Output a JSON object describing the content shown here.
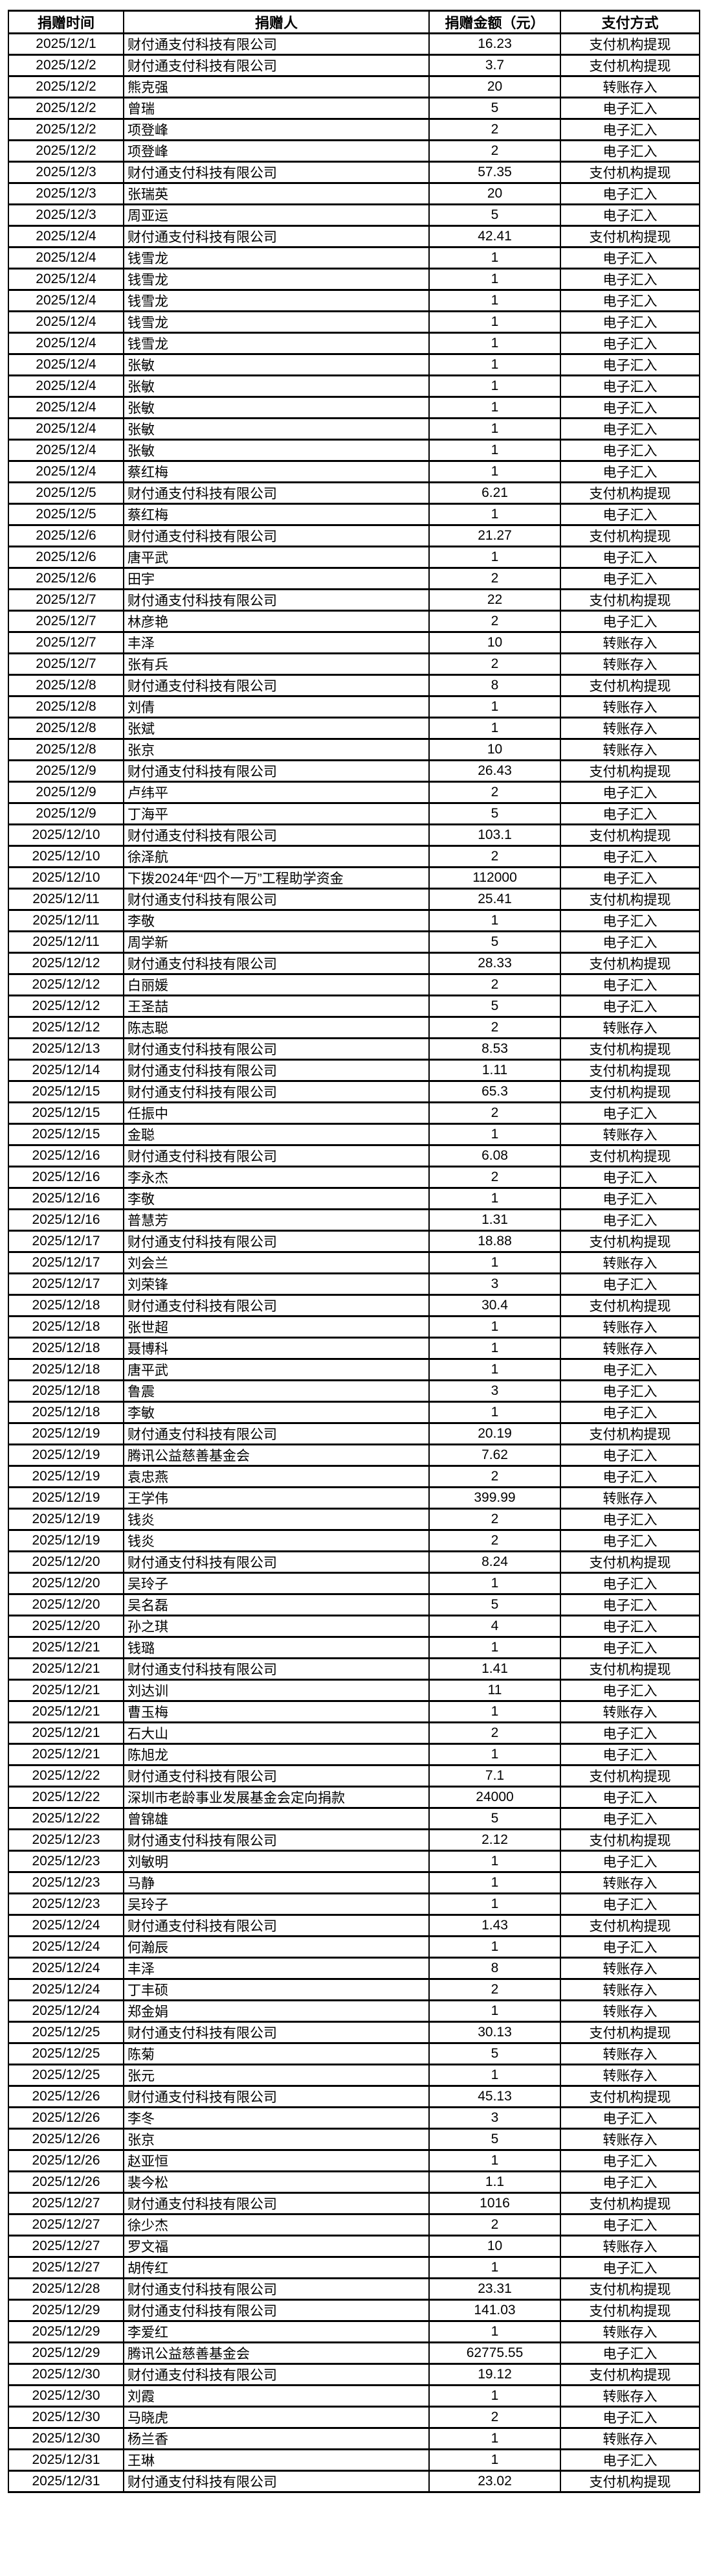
{
  "table": {
    "headers": [
      "捐赠时间",
      "捐赠人",
      "捐赠金额（元）",
      "支付方式"
    ],
    "rows": [
      [
        "2025/12/1",
        "财付通支付科技有限公司",
        "16.23",
        "支付机构提现"
      ],
      [
        "2025/12/2",
        "财付通支付科技有限公司",
        "3.7",
        "支付机构提现"
      ],
      [
        "2025/12/2",
        "熊克强",
        "20",
        "转账存入"
      ],
      [
        "2025/12/2",
        "曾瑞",
        "5",
        "电子汇入"
      ],
      [
        "2025/12/2",
        "项登峰",
        "2",
        "电子汇入"
      ],
      [
        "2025/12/2",
        "项登峰",
        "2",
        "电子汇入"
      ],
      [
        "2025/12/3",
        "财付通支付科技有限公司",
        "57.35",
        "支付机构提现"
      ],
      [
        "2025/12/3",
        "张瑞英",
        "20",
        "电子汇入"
      ],
      [
        "2025/12/3",
        "周亚运",
        "5",
        "电子汇入"
      ],
      [
        "2025/12/4",
        "财付通支付科技有限公司",
        "42.41",
        "支付机构提现"
      ],
      [
        "2025/12/4",
        "钱雪龙",
        "1",
        "电子汇入"
      ],
      [
        "2025/12/4",
        "钱雪龙",
        "1",
        "电子汇入"
      ],
      [
        "2025/12/4",
        "钱雪龙",
        "1",
        "电子汇入"
      ],
      [
        "2025/12/4",
        "钱雪龙",
        "1",
        "电子汇入"
      ],
      [
        "2025/12/4",
        "钱雪龙",
        "1",
        "电子汇入"
      ],
      [
        "2025/12/4",
        "张敏",
        "1",
        "电子汇入"
      ],
      [
        "2025/12/4",
        "张敏",
        "1",
        "电子汇入"
      ],
      [
        "2025/12/4",
        "张敏",
        "1",
        "电子汇入"
      ],
      [
        "2025/12/4",
        "张敏",
        "1",
        "电子汇入"
      ],
      [
        "2025/12/4",
        "张敏",
        "1",
        "电子汇入"
      ],
      [
        "2025/12/4",
        "蔡红梅",
        "1",
        "电子汇入"
      ],
      [
        "2025/12/5",
        "财付通支付科技有限公司",
        "6.21",
        "支付机构提现"
      ],
      [
        "2025/12/5",
        "蔡红梅",
        "1",
        "电子汇入"
      ],
      [
        "2025/12/6",
        "财付通支付科技有限公司",
        "21.27",
        "支付机构提现"
      ],
      [
        "2025/12/6",
        "唐平武",
        "1",
        "电子汇入"
      ],
      [
        "2025/12/6",
        "田宇",
        "2",
        "电子汇入"
      ],
      [
        "2025/12/7",
        "财付通支付科技有限公司",
        "22",
        "支付机构提现"
      ],
      [
        "2025/12/7",
        "林彦艳",
        "2",
        "电子汇入"
      ],
      [
        "2025/12/7",
        "丰泽",
        "10",
        "转账存入"
      ],
      [
        "2025/12/7",
        "张有兵",
        "2",
        "转账存入"
      ],
      [
        "2025/12/8",
        "财付通支付科技有限公司",
        "8",
        "支付机构提现"
      ],
      [
        "2025/12/8",
        "刘倩",
        "1",
        "转账存入"
      ],
      [
        "2025/12/8",
        "张斌",
        "1",
        "转账存入"
      ],
      [
        "2025/12/8",
        "张京",
        "10",
        "转账存入"
      ],
      [
        "2025/12/9",
        "财付通支付科技有限公司",
        "26.43",
        "支付机构提现"
      ],
      [
        "2025/12/9",
        "卢纬平",
        "2",
        "电子汇入"
      ],
      [
        "2025/12/9",
        "丁海平",
        "5",
        "电子汇入"
      ],
      [
        "2025/12/10",
        "财付通支付科技有限公司",
        "103.1",
        "支付机构提现"
      ],
      [
        "2025/12/10",
        "徐泽航",
        "2",
        "电子汇入"
      ],
      [
        "2025/12/10",
        "下拨2024年“四个一万”工程助学资金",
        "112000",
        "电子汇入"
      ],
      [
        "2025/12/11",
        "财付通支付科技有限公司",
        "25.41",
        "支付机构提现"
      ],
      [
        "2025/12/11",
        "李敬",
        "1",
        "电子汇入"
      ],
      [
        "2025/12/11",
        "周学新",
        "5",
        "电子汇入"
      ],
      [
        "2025/12/12",
        "财付通支付科技有限公司",
        "28.33",
        "支付机构提现"
      ],
      [
        "2025/12/12",
        "白丽媛",
        "2",
        "电子汇入"
      ],
      [
        "2025/12/12",
        "王圣喆",
        "5",
        "电子汇入"
      ],
      [
        "2025/12/12",
        "陈志聪",
        "2",
        "转账存入"
      ],
      [
        "2025/12/13",
        "财付通支付科技有限公司",
        "8.53",
        "支付机构提现"
      ],
      [
        "2025/12/14",
        "财付通支付科技有限公司",
        "1.11",
        "支付机构提现"
      ],
      [
        "2025/12/15",
        "财付通支付科技有限公司",
        "65.3",
        "支付机构提现"
      ],
      [
        "2025/12/15",
        "任振中",
        "2",
        "电子汇入"
      ],
      [
        "2025/12/15",
        "金聪",
        "1",
        "转账存入"
      ],
      [
        "2025/12/16",
        "财付通支付科技有限公司",
        "6.08",
        "支付机构提现"
      ],
      [
        "2025/12/16",
        "李永杰",
        "2",
        "电子汇入"
      ],
      [
        "2025/12/16",
        "李敬",
        "1",
        "电子汇入"
      ],
      [
        "2025/12/16",
        "普慧芳",
        "1.31",
        "电子汇入"
      ],
      [
        "2025/12/17",
        "财付通支付科技有限公司",
        "18.88",
        "支付机构提现"
      ],
      [
        "2025/12/17",
        "刘会兰",
        "1",
        "转账存入"
      ],
      [
        "2025/12/17",
        "刘荣锋",
        "3",
        "电子汇入"
      ],
      [
        "2025/12/18",
        "财付通支付科技有限公司",
        "30.4",
        "支付机构提现"
      ],
      [
        "2025/12/18",
        "张世超",
        "1",
        "转账存入"
      ],
      [
        "2025/12/18",
        "聂博科",
        "1",
        "转账存入"
      ],
      [
        "2025/12/18",
        "唐平武",
        "1",
        "电子汇入"
      ],
      [
        "2025/12/18",
        "鲁震",
        "3",
        "电子汇入"
      ],
      [
        "2025/12/18",
        "李敏",
        "1",
        "电子汇入"
      ],
      [
        "2025/12/19",
        "财付通支付科技有限公司",
        "20.19",
        "支付机构提现"
      ],
      [
        "2025/12/19",
        "腾讯公益慈善基金会",
        "7.62",
        "电子汇入"
      ],
      [
        "2025/12/19",
        "袁忠燕",
        "2",
        "电子汇入"
      ],
      [
        "2025/12/19",
        "王学伟",
        "399.99",
        "转账存入"
      ],
      [
        "2025/12/19",
        "钱炎",
        "2",
        "电子汇入"
      ],
      [
        "2025/12/19",
        "钱炎",
        "2",
        "电子汇入"
      ],
      [
        "2025/12/20",
        "财付通支付科技有限公司",
        "8.24",
        "支付机构提现"
      ],
      [
        "2025/12/20",
        "吴玲子",
        "1",
        "电子汇入"
      ],
      [
        "2025/12/20",
        "吴名磊",
        "5",
        "电子汇入"
      ],
      [
        "2025/12/20",
        "孙之琪",
        "4",
        "电子汇入"
      ],
      [
        "2025/12/21",
        "钱璐",
        "1",
        "电子汇入"
      ],
      [
        "2025/12/21",
        "财付通支付科技有限公司",
        "1.41",
        "支付机构提现"
      ],
      [
        "2025/12/21",
        "刘达训",
        "11",
        "电子汇入"
      ],
      [
        "2025/12/21",
        "曹玉梅",
        "1",
        "转账存入"
      ],
      [
        "2025/12/21",
        "石大山",
        "2",
        "电子汇入"
      ],
      [
        "2025/12/21",
        "陈旭龙",
        "1",
        "电子汇入"
      ],
      [
        "2025/12/22",
        "财付通支付科技有限公司",
        "7.1",
        "支付机构提现"
      ],
      [
        "2025/12/22",
        "深圳市老龄事业发展基金会定向捐款",
        "24000",
        "电子汇入"
      ],
      [
        "2025/12/22",
        "曾锦雄",
        "5",
        "电子汇入"
      ],
      [
        "2025/12/23",
        "财付通支付科技有限公司",
        "2.12",
        "支付机构提现"
      ],
      [
        "2025/12/23",
        "刘敏明",
        "1",
        "电子汇入"
      ],
      [
        "2025/12/23",
        "马静",
        "1",
        "转账存入"
      ],
      [
        "2025/12/23",
        "吴玲子",
        "1",
        "电子汇入"
      ],
      [
        "2025/12/24",
        "财付通支付科技有限公司",
        "1.43",
        "支付机构提现"
      ],
      [
        "2025/12/24",
        "何瀚辰",
        "1",
        "电子汇入"
      ],
      [
        "2025/12/24",
        "丰泽",
        "8",
        "转账存入"
      ],
      [
        "2025/12/24",
        "丁丰硕",
        "2",
        "转账存入"
      ],
      [
        "2025/12/24",
        "郑金娟",
        "1",
        "转账存入"
      ],
      [
        "2025/12/25",
        "财付通支付科技有限公司",
        "30.13",
        "支付机构提现"
      ],
      [
        "2025/12/25",
        "陈菊",
        "5",
        "转账存入"
      ],
      [
        "2025/12/25",
        "张元",
        "1",
        "转账存入"
      ],
      [
        "2025/12/26",
        "财付通支付科技有限公司",
        "45.13",
        "支付机构提现"
      ],
      [
        "2025/12/26",
        "李冬",
        "3",
        "电子汇入"
      ],
      [
        "2025/12/26",
        "张京",
        "5",
        "转账存入"
      ],
      [
        "2025/12/26",
        "赵亚恒",
        "1",
        "电子汇入"
      ],
      [
        "2025/12/26",
        "裴今松",
        "1.1",
        "电子汇入"
      ],
      [
        "2025/12/27",
        "财付通支付科技有限公司",
        "1016",
        "支付机构提现"
      ],
      [
        "2025/12/27",
        "徐少杰",
        "2",
        "电子汇入"
      ],
      [
        "2025/12/27",
        "罗文福",
        "10",
        "转账存入"
      ],
      [
        "2025/12/27",
        "胡传红",
        "1",
        "电子汇入"
      ],
      [
        "2025/12/28",
        "财付通支付科技有限公司",
        "23.31",
        "支付机构提现"
      ],
      [
        "2025/12/29",
        "财付通支付科技有限公司",
        "141.03",
        "支付机构提现"
      ],
      [
        "2025/12/29",
        "李爱红",
        "1",
        "转账存入"
      ],
      [
        "2025/12/29",
        "腾讯公益慈善基金会",
        "62775.55",
        "电子汇入"
      ],
      [
        "2025/12/30",
        "财付通支付科技有限公司",
        "19.12",
        "支付机构提现"
      ],
      [
        "2025/12/30",
        "刘霞",
        "1",
        "转账存入"
      ],
      [
        "2025/12/30",
        "马晓虎",
        "2",
        "电子汇入"
      ],
      [
        "2025/12/30",
        "杨兰香",
        "1",
        "转账存入"
      ],
      [
        "2025/12/31",
        "王琳",
        "1",
        "电子汇入"
      ],
      [
        "2025/12/31",
        "财付通支付科技有限公司",
        "23.02",
        "支付机构提现"
      ]
    ]
  }
}
